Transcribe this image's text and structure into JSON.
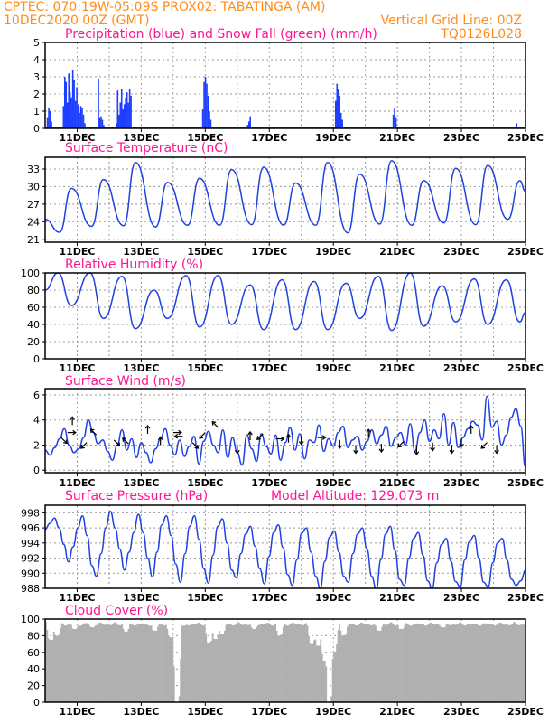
{
  "header": {
    "line1": "CPTEC:   070:19W-05:09S   PROX02: TABATINGA (AM)",
    "line2_left": "10DEC2020 00Z (GMT)",
    "line2_right": "Vertical Grid Line: 00Z",
    "line3_right": "TQ0126L028"
  },
  "colors": {
    "header": "#ff8c1a",
    "title": "#ff1493",
    "line": "#2040e0",
    "precip": "#1f3fff",
    "snow": "#00aa00",
    "cloud": "#b0b0b0",
    "arrow": "#000000"
  },
  "chart_data": [
    {
      "type": "bar",
      "name": "precipitation",
      "title": "Precipitation (blue) and Snow Fall (green) (mm/h)",
      "x_ticks": [
        "11DEC",
        "13DEC",
        "15DEC",
        "17DEC",
        "19DEC",
        "21DEC",
        "23DEC",
        "25DEC"
      ],
      "ylim": [
        0,
        5
      ],
      "y_ticks": [
        "0",
        "1",
        "2",
        "3",
        "4",
        "5"
      ],
      "grid": true,
      "snow_series": [
        0
      ],
      "precip_events": [
        {
          "start_day": 0.05,
          "values": [
            0.6,
            1.2,
            1.0,
            0.4
          ]
        },
        {
          "start_day": 0.55,
          "values": [
            1.3,
            3.0,
            2.7,
            1.5,
            3.2,
            2.1,
            1.8,
            3.4,
            2.8,
            1.6,
            2.4,
            1.4,
            0.9,
            1.3,
            1.2,
            0.8,
            0.3
          ]
        },
        {
          "start_day": 1.6,
          "values": [
            0.1,
            2.9,
            0.6,
            0.7,
            0.5,
            0.2
          ]
        },
        {
          "start_day": 2.2,
          "values": [
            0.3,
            2.2,
            0.8,
            1.5,
            2.3,
            1.1,
            1.4,
            1.8,
            2.1,
            1.5,
            2.3,
            1.9
          ]
        },
        {
          "start_day": 4.9,
          "values": [
            1.1,
            2.7,
            3.0,
            2.6,
            1.9,
            1.0,
            0.5
          ]
        },
        {
          "start_day": 6.3,
          "values": [
            0.2,
            0.4,
            0.7
          ]
        },
        {
          "start_day": 9.05,
          "values": [
            1.6,
            2.6,
            2.3,
            1.9,
            0.9,
            0.5
          ]
        },
        {
          "start_day": 10.85,
          "values": [
            0.8,
            1.2,
            0.6
          ]
        },
        {
          "start_day": 14.7,
          "values": [
            0.3
          ]
        }
      ]
    },
    {
      "type": "line",
      "name": "temperature",
      "title": "Surface Temperature (nC)",
      "x_ticks": [
        "11DEC",
        "13DEC",
        "15DEC",
        "17DEC",
        "19DEC",
        "21DEC",
        "23DEC",
        "25DEC"
      ],
      "ylim": [
        20.5,
        35
      ],
      "y_ticks": [
        "21",
        "24",
        "27",
        "30",
        "33"
      ],
      "grid": true,
      "daily_min": [
        22.2,
        23.2,
        23.3,
        23.1,
        23.4,
        23.4,
        23.5,
        23.4,
        23.4,
        22.1,
        23.6,
        23.4,
        23.8,
        23.5,
        24.4
      ],
      "daily_max": [
        29.7,
        31.2,
        34.1,
        30.7,
        31.4,
        32.9,
        33.3,
        30.6,
        34.1,
        32.1,
        34.4,
        31.0,
        33.1,
        33.6,
        31.0
      ],
      "start": 24.4,
      "end": 29.2
    },
    {
      "type": "line",
      "name": "humidity",
      "title": "Relative Humidity (%)",
      "x_ticks": [
        "11DEC",
        "13DEC",
        "15DEC",
        "17DEC",
        "19DEC",
        "21DEC",
        "23DEC",
        "25DEC"
      ],
      "ylim": [
        0,
        100
      ],
      "y_ticks": [
        "0",
        "20",
        "40",
        "60",
        "80",
        "100"
      ],
      "grid": true,
      "daily_min": [
        62,
        47,
        35,
        47,
        37,
        40,
        34,
        34,
        34,
        47,
        33,
        38,
        43,
        40,
        43
      ],
      "daily_max": [
        100,
        100,
        96,
        80,
        97,
        97,
        86,
        92,
        90,
        88,
        96,
        100,
        85,
        93,
        92
      ],
      "start": 80,
      "end": 54
    },
    {
      "type": "line",
      "name": "wind",
      "title": "Surface Wind (m/s)",
      "x_ticks": [
        "11DEC",
        "13DEC",
        "15DEC",
        "17DEC",
        "19DEC",
        "21DEC",
        "23DEC",
        "25DEC"
      ],
      "ylim": [
        -0.2,
        6.5
      ],
      "y_ticks": [
        "0",
        "2",
        "4",
        "6"
      ],
      "grid": true,
      "values": [
        1.6,
        1.2,
        1.8,
        2.5,
        3.3,
        2.0,
        1.4,
        1.7,
        2.6,
        4.0,
        3.0,
        2.1,
        2.4,
        1.5,
        0.8,
        2.0,
        3.2,
        1.6,
        2.5,
        1.0,
        2.2,
        1.4,
        0.6,
        1.7,
        2.5,
        3.3,
        2.0,
        1.2,
        2.4,
        1.1,
        1.9,
        2.7,
        0.5,
        2.3,
        3.1,
        2.0,
        1.4,
        3.2,
        1.0,
        2.6,
        1.4,
        0.4,
        2.8,
        1.7,
        0.7,
        2.9,
        1.9,
        1.3,
        2.8,
        0.8,
        2.2,
        3.4,
        1.6,
        2.9,
        0.9,
        2.4,
        2.2,
        3.6,
        1.5,
        2.5,
        1.9,
        3.0,
        3.5,
        1.8,
        2.4,
        2.7,
        1.6,
        2.3,
        3.2,
        2.1,
        2.8,
        3.5,
        1.9,
        2.6,
        3.0,
        2.0,
        3.7,
        1.5,
        3.0,
        4.0,
        2.3,
        3.2,
        2.5,
        4.5,
        2.0,
        3.8,
        1.8,
        2.6,
        3.3,
        3.9,
        3.6,
        2.4,
        5.9,
        3.4,
        3.9,
        2.0,
        2.8,
        4.2,
        4.9,
        3.5,
        0.2
      ],
      "vectors": [
        {
          "day": 0.5,
          "dir": "down-right",
          "speed": 2.6
        },
        {
          "day": 0.7,
          "dir": "right",
          "speed": 3.0
        },
        {
          "day": 0.85,
          "dir": "up",
          "speed": 3.6
        },
        {
          "day": 1.3,
          "dir": "down-left",
          "speed": 2.2
        },
        {
          "day": 1.6,
          "dir": "up-left",
          "speed": 2.8
        },
        {
          "day": 2.15,
          "dir": "down-right",
          "speed": 2.4
        },
        {
          "day": 2.6,
          "dir": "up-left",
          "speed": 2.1
        },
        {
          "day": 3.2,
          "dir": "up",
          "speed": 2.9
        },
        {
          "day": 3.6,
          "dir": "up",
          "speed": 2.0
        },
        {
          "day": 4.0,
          "dir": "right",
          "speed": 3.0
        },
        {
          "day": 4.3,
          "dir": "left",
          "speed": 2.7
        },
        {
          "day": 4.6,
          "dir": "down-right",
          "speed": 2.2
        },
        {
          "day": 5.0,
          "dir": "down-left",
          "speed": 3.0
        },
        {
          "day": 5.4,
          "dir": "up-left",
          "speed": 3.4
        },
        {
          "day": 6.0,
          "dir": "down",
          "speed": 2.0
        },
        {
          "day": 6.4,
          "dir": "up",
          "speed": 2.4
        },
        {
          "day": 6.8,
          "dir": "down-left",
          "speed": 2.9
        },
        {
          "day": 7.2,
          "dir": "right",
          "speed": 2.5
        },
        {
          "day": 7.6,
          "dir": "up",
          "speed": 2.2
        },
        {
          "day": 8.0,
          "dir": "down",
          "speed": 2.7
        },
        {
          "day": 8.5,
          "dir": "right",
          "speed": 2.6
        },
        {
          "day": 9.2,
          "dir": "down",
          "speed": 2.4
        },
        {
          "day": 9.7,
          "dir": "down",
          "speed": 2.0
        },
        {
          "day": 10.1,
          "dir": "up",
          "speed": 2.6
        },
        {
          "day": 10.5,
          "dir": "down",
          "speed": 2.1
        },
        {
          "day": 11.2,
          "dir": "down-left",
          "speed": 2.3
        },
        {
          "day": 11.6,
          "dir": "down",
          "speed": 1.9
        },
        {
          "day": 12.1,
          "dir": "down",
          "speed": 2.2
        },
        {
          "day": 12.7,
          "dir": "down",
          "speed": 2.0
        },
        {
          "day": 13.0,
          "dir": "down",
          "speed": 2.5
        },
        {
          "day": 13.3,
          "dir": "up",
          "speed": 2.9
        },
        {
          "day": 13.8,
          "dir": "down-left",
          "speed": 2.2
        },
        {
          "day": 14.1,
          "dir": "down",
          "speed": 2.0
        }
      ]
    },
    {
      "type": "line",
      "name": "pressure",
      "title": "Surface Pressure (hPa)",
      "annotation": "Model Altitude: 129.073 m",
      "x_ticks": [
        "11DEC",
        "13DEC",
        "15DEC",
        "17DEC",
        "19DEC",
        "21DEC",
        "23DEC",
        "25DEC"
      ],
      "ylim": [
        988,
        999
      ],
      "y_ticks": [
        "988",
        "990",
        "992",
        "994",
        "996",
        "998"
      ],
      "grid": true,
      "values": [
        995.8,
        996.6,
        997.3,
        996.0,
        993.8,
        991.5,
        993.5,
        996.0,
        997.6,
        995.0,
        991.0,
        989.6,
        992.6,
        996.0,
        998.2,
        996.0,
        993.2,
        990.4,
        992.8,
        995.4,
        997.8,
        995.4,
        992.0,
        989.5,
        992.8,
        996.4,
        997.6,
        995.0,
        991.2,
        988.8,
        992.6,
        996.2,
        997.6,
        994.5,
        990.6,
        988.7,
        992.4,
        996.2,
        997.2,
        994.0,
        990.4,
        989.4,
        992.6,
        995.2,
        996.2,
        993.6,
        990.6,
        988.6,
        992.2,
        995.4,
        996.4,
        993.4,
        989.8,
        988.4,
        991.8,
        995.3,
        996.0,
        992.8,
        989.6,
        988.0,
        991.6,
        994.8,
        995.6,
        992.8,
        989.6,
        988.8,
        992.6,
        995.2,
        996.0,
        993.2,
        989.6,
        987.9,
        991.8,
        995.2,
        996.2,
        993.0,
        989.2,
        988.4,
        992.0,
        994.6,
        995.4,
        992.4,
        989.0,
        988.0,
        991.4,
        993.8,
        994.6,
        991.6,
        988.9,
        988.2,
        991.8,
        994.2,
        995.0,
        992.0,
        988.8,
        988.2,
        991.4,
        994.0,
        994.6,
        991.8,
        989.2,
        988.4,
        989.0,
        990.4
      ]
    },
    {
      "type": "bar",
      "name": "cloud",
      "title": "Cloud Cover (%)",
      "x_ticks": [
        "11DEC",
        "13DEC",
        "15DEC",
        "17DEC",
        "19DEC",
        "21DEC",
        "23DEC",
        "25DEC"
      ],
      "ylim": [
        0,
        100
      ],
      "y_ticks": [
        "0",
        "20",
        "40",
        "60",
        "80",
        "100"
      ],
      "grid": true,
      "base_value": 97,
      "dips": [
        {
          "day": 0.15,
          "value": 75
        },
        {
          "day": 0.35,
          "value": 80
        },
        {
          "day": 0.9,
          "value": 88
        },
        {
          "day": 1.45,
          "value": 90
        },
        {
          "day": 2.5,
          "value": 85
        },
        {
          "day": 3.4,
          "value": 86
        },
        {
          "day": 3.9,
          "value": 78
        },
        {
          "day": 4.1,
          "value": 0
        },
        {
          "day": 4.3,
          "value": 92
        },
        {
          "day": 5.1,
          "value": 72
        },
        {
          "day": 5.3,
          "value": 76
        },
        {
          "day": 5.5,
          "value": 82
        },
        {
          "day": 6.5,
          "value": 88
        },
        {
          "day": 7.3,
          "value": 80
        },
        {
          "day": 8.3,
          "value": 70
        },
        {
          "day": 8.5,
          "value": 68
        },
        {
          "day": 8.7,
          "value": 50
        },
        {
          "day": 8.85,
          "value": 0
        },
        {
          "day": 9.0,
          "value": 60
        },
        {
          "day": 9.3,
          "value": 80
        },
        {
          "day": 10.4,
          "value": 86
        },
        {
          "day": 11.1,
          "value": 88
        },
        {
          "day": 12.4,
          "value": 90
        },
        {
          "day": 13.4,
          "value": 94
        }
      ]
    }
  ]
}
